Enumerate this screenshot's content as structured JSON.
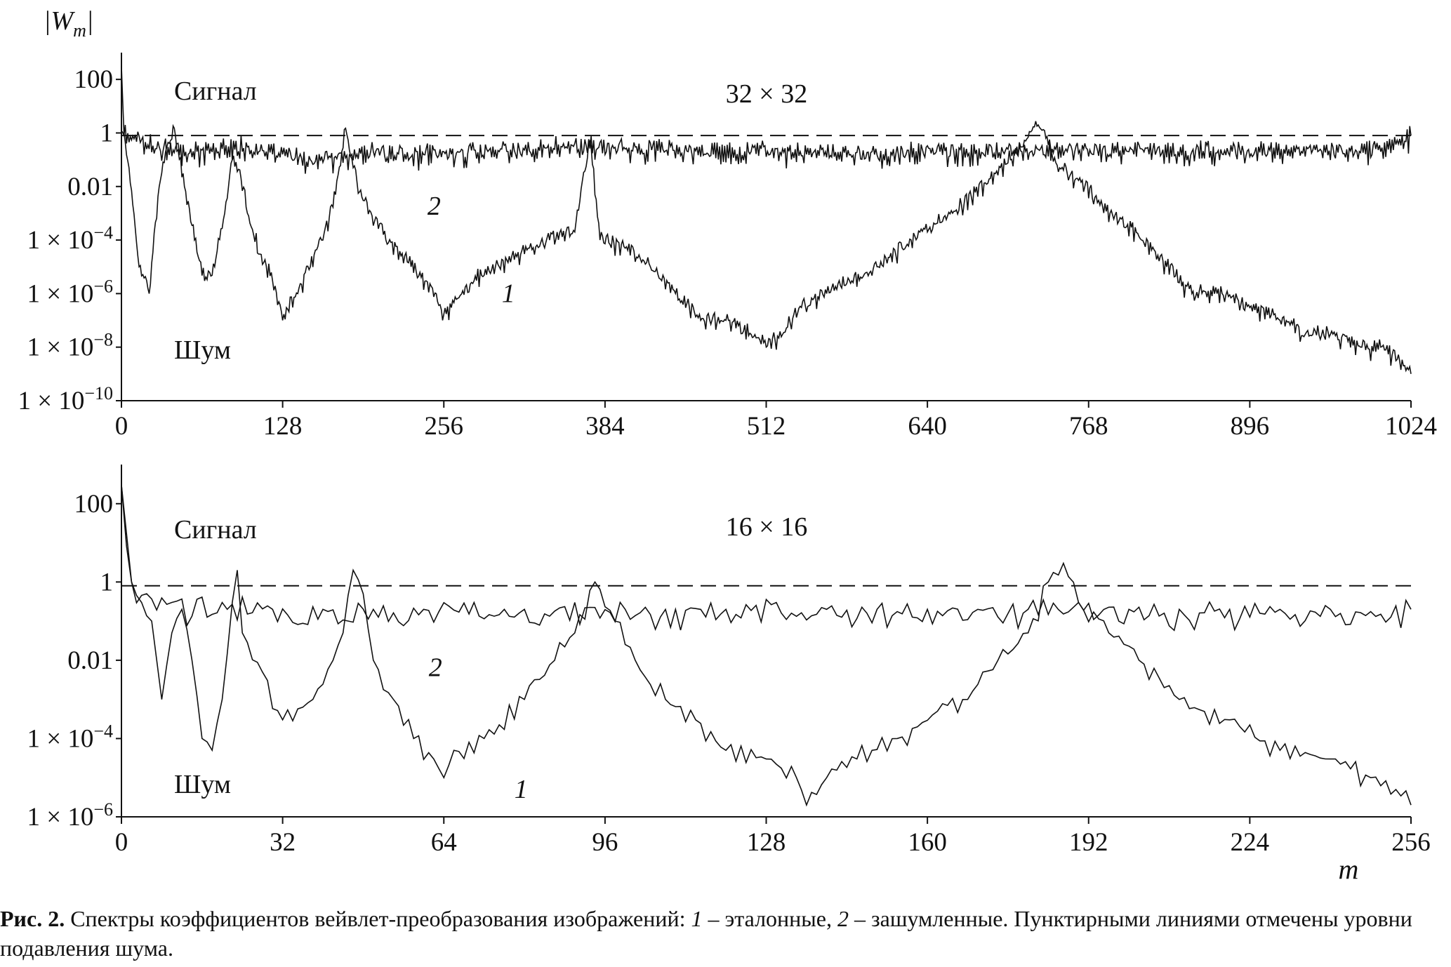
{
  "chart_data": [
    {
      "type": "line",
      "title": "32 × 32",
      "xlabel": "",
      "ylabel": "|W_m|",
      "scale_y": "log",
      "xlim": [
        0,
        1024
      ],
      "ylim": [
        1e-10,
        1000
      ],
      "x_ticks": [
        0,
        128,
        256,
        384,
        512,
        640,
        768,
        896,
        1024
      ],
      "y_ticks": [
        {
          "value": 1e-10,
          "mant": "1 × 10",
          "exp": "−10"
        },
        {
          "value": 1e-08,
          "mant": "1 × 10",
          "exp": "−8"
        },
        {
          "value": 1e-06,
          "mant": "1 × 10",
          "exp": "−6"
        },
        {
          "value": 0.0001,
          "mant": "1 × 10",
          "exp": "−4"
        },
        {
          "value": 0.01,
          "mant": "0.01",
          "exp": ""
        },
        {
          "value": 1,
          "mant": "1",
          "exp": ""
        },
        {
          "value": 100,
          "mant": "100",
          "exp": ""
        }
      ],
      "annotations": {
        "signal": "Сигнал",
        "noise": "Шум"
      },
      "threshold": 0.8,
      "series": [
        {
          "name": "1",
          "label_at": [
            302,
            1e-06
          ],
          "anchors": [
            [
              0,
              300
            ],
            [
              2,
              1
            ],
            [
              6,
              0.05
            ],
            [
              14,
              1e-05
            ],
            [
              22,
              1e-06
            ],
            [
              30,
              0.01
            ],
            [
              36,
              0.3
            ],
            [
              42,
              1.5
            ],
            [
              50,
              0.01
            ],
            [
              58,
              0.0001
            ],
            [
              66,
              3e-06
            ],
            [
              74,
              1e-05
            ],
            [
              82,
              0.001
            ],
            [
              88,
              0.1
            ],
            [
              95,
              0.02
            ],
            [
              100,
              0.001
            ],
            [
              110,
              3e-05
            ],
            [
              120,
              3e-06
            ],
            [
              128,
              1e-07
            ],
            [
              140,
              1e-06
            ],
            [
              150,
              1e-05
            ],
            [
              160,
              0.0001
            ],
            [
              170,
              0.005
            ],
            [
              178,
              1.5
            ],
            [
              184,
              0.05
            ],
            [
              192,
              0.003
            ],
            [
              210,
              0.0001
            ],
            [
              230,
              1e-05
            ],
            [
              250,
              1e-06
            ],
            [
              255,
              1e-07
            ],
            [
              262,
              3e-07
            ],
            [
              280,
              3e-06
            ],
            [
              300,
              1e-05
            ],
            [
              320,
              3e-05
            ],
            [
              340,
              0.0001
            ],
            [
              360,
              0.0002
            ],
            [
              372,
              0.5
            ],
            [
              380,
              0.0001
            ],
            [
              400,
              5e-05
            ],
            [
              420,
              1e-05
            ],
            [
              440,
              1e-06
            ],
            [
              460,
              1e-07
            ],
            [
              480,
              1e-07
            ],
            [
              500,
              3e-08
            ],
            [
              512,
              1e-08
            ],
            [
              525,
              3e-08
            ],
            [
              540,
              3e-07
            ],
            [
              560,
              1e-06
            ],
            [
              580,
              3e-06
            ],
            [
              600,
              1e-05
            ],
            [
              620,
              5e-05
            ],
            [
              640,
              0.0002
            ],
            [
              660,
              0.001
            ],
            [
              690,
              0.02
            ],
            [
              715,
              0.3
            ],
            [
              728,
              2
            ],
            [
              745,
              0.05
            ],
            [
              765,
              0.01
            ],
            [
              785,
              0.001
            ],
            [
              810,
              0.0001
            ],
            [
              830,
              1e-05
            ],
            [
              850,
              1e-06
            ],
            [
              870,
              1e-06
            ],
            [
              896,
              3e-07
            ],
            [
              920,
              1e-07
            ],
            [
              940,
              3e-08
            ],
            [
              960,
              3e-08
            ],
            [
              985,
              1e-08
            ],
            [
              1000,
              1e-08
            ],
            [
              1015,
              3e-09
            ],
            [
              1024,
              1e-09
            ]
          ],
          "detail": {
            "seed": 11,
            "period": 4,
            "logamp": 0.45
          }
        },
        {
          "name": "2",
          "label_at": [
            243,
            0.0018
          ],
          "anchors": [
            [
              0,
              1.2
            ],
            [
              30,
              0.3
            ],
            [
              60,
              0.2
            ],
            [
              100,
              0.3
            ],
            [
              150,
              0.1
            ],
            [
              200,
              0.2
            ],
            [
              250,
              0.15
            ],
            [
              300,
              0.2
            ],
            [
              350,
              0.3
            ],
            [
              400,
              0.25
            ],
            [
              450,
              0.2
            ],
            [
              500,
              0.2
            ],
            [
              550,
              0.2
            ],
            [
              600,
              0.15
            ],
            [
              650,
              0.2
            ],
            [
              700,
              0.2
            ],
            [
              750,
              0.25
            ],
            [
              800,
              0.2
            ],
            [
              850,
              0.2
            ],
            [
              900,
              0.2
            ],
            [
              950,
              0.2
            ],
            [
              1000,
              0.2
            ],
            [
              1024,
              0.8
            ]
          ],
          "detail": {
            "seed": 23,
            "period": 2,
            "logamp": 0.55
          }
        }
      ]
    },
    {
      "type": "line",
      "title": "16 × 16",
      "xlabel": "m",
      "ylabel": "",
      "scale_y": "log",
      "xlim": [
        0,
        256
      ],
      "ylim": [
        1e-06,
        1000
      ],
      "x_ticks": [
        0,
        32,
        64,
        96,
        128,
        160,
        192,
        224,
        256
      ],
      "y_ticks": [
        {
          "value": 1e-06,
          "mant": "1 × 10",
          "exp": "−6"
        },
        {
          "value": 0.0001,
          "mant": "1 × 10",
          "exp": "−4"
        },
        {
          "value": 0.01,
          "mant": "0.01",
          "exp": ""
        },
        {
          "value": 1,
          "mant": "1",
          "exp": ""
        },
        {
          "value": 100,
          "mant": "100",
          "exp": ""
        }
      ],
      "annotations": {
        "signal": "Сигнал",
        "noise": "Шум"
      },
      "threshold": 0.8,
      "series": [
        {
          "name": "1",
          "label_at": [
            78,
            5e-06
          ],
          "anchors": [
            [
              0,
              300
            ],
            [
              2,
              1
            ],
            [
              4,
              0.3
            ],
            [
              6,
              0.1
            ],
            [
              8,
              0.001
            ],
            [
              10,
              0.05
            ],
            [
              12,
              0.2
            ],
            [
              14,
              0.01
            ],
            [
              16,
              0.0001
            ],
            [
              18,
              5e-05
            ],
            [
              20,
              0.001
            ],
            [
              22,
              0.3
            ],
            [
              23,
              2
            ],
            [
              24,
              0.05
            ],
            [
              28,
              0.005
            ],
            [
              32,
              0.0003
            ],
            [
              38,
              0.001
            ],
            [
              42,
              0.01
            ],
            [
              44,
              0.05
            ],
            [
              46,
              2
            ],
            [
              48,
              0.5
            ],
            [
              50,
              0.01
            ],
            [
              54,
              0.001
            ],
            [
              58,
              0.0001
            ],
            [
              62,
              3e-05
            ],
            [
              64,
              1e-05
            ],
            [
              66,
              5e-05
            ],
            [
              72,
              0.0001
            ],
            [
              80,
              0.001
            ],
            [
              86,
              0.01
            ],
            [
              90,
              0.05
            ],
            [
              94,
              1
            ],
            [
              98,
              0.1
            ],
            [
              102,
              0.01
            ],
            [
              108,
              0.001
            ],
            [
              114,
              0.0003
            ],
            [
              120,
              5e-05
            ],
            [
              128,
              3e-05
            ],
            [
              134,
              1e-05
            ],
            [
              136,
              2e-06
            ],
            [
              140,
              1e-05
            ],
            [
              146,
              3e-05
            ],
            [
              154,
              0.0001
            ],
            [
              162,
              0.0005
            ],
            [
              168,
              0.001
            ],
            [
              174,
              0.01
            ],
            [
              180,
              0.05
            ],
            [
              184,
              1
            ],
            [
              187,
              3
            ],
            [
              190,
              0.3
            ],
            [
              196,
              0.05
            ],
            [
              202,
              0.01
            ],
            [
              210,
              0.001
            ],
            [
              220,
              0.0003
            ],
            [
              230,
              5e-05
            ],
            [
              240,
              3e-05
            ],
            [
              248,
              1e-05
            ],
            [
              253,
              5e-06
            ],
            [
              256,
              2e-06
            ]
          ],
          "detail": {
            "seed": 37,
            "period": 2,
            "logamp": 0.35
          }
        },
        {
          "name": "2",
          "label_at": [
            61,
            0.0065
          ],
          "anchors": [
            [
              0,
              300
            ],
            [
              2,
              1
            ],
            [
              5,
              0.5
            ],
            [
              10,
              0.3
            ],
            [
              20,
              0.3
            ],
            [
              30,
              0.2
            ],
            [
              40,
              0.2
            ],
            [
              50,
              0.2
            ],
            [
              60,
              0.2
            ],
            [
              70,
              0.3
            ],
            [
              80,
              0.2
            ],
            [
              90,
              0.3
            ],
            [
              100,
              0.2
            ],
            [
              110,
              0.2
            ],
            [
              120,
              0.2
            ],
            [
              130,
              0.3
            ],
            [
              140,
              0.2
            ],
            [
              150,
              0.2
            ],
            [
              160,
              0.2
            ],
            [
              170,
              0.2
            ],
            [
              180,
              0.2
            ],
            [
              190,
              0.3
            ],
            [
              200,
              0.2
            ],
            [
              210,
              0.2
            ],
            [
              220,
              0.2
            ],
            [
              230,
              0.2
            ],
            [
              240,
              0.2
            ],
            [
              250,
              0.15
            ],
            [
              256,
              0.2
            ]
          ],
          "detail": {
            "seed": 59,
            "period": 1,
            "logamp": 0.5
          }
        }
      ]
    }
  ],
  "caption": {
    "lead": "Рис. 2.",
    "t1": " Спектры коэффициентов вейвлет-преобразования изображений: ",
    "i1": "1",
    "t2": " – эталонные, ",
    "i2": "2",
    "t3": " – зашумленные. Пунктирными линиями отмечены уровни подавления шума."
  }
}
